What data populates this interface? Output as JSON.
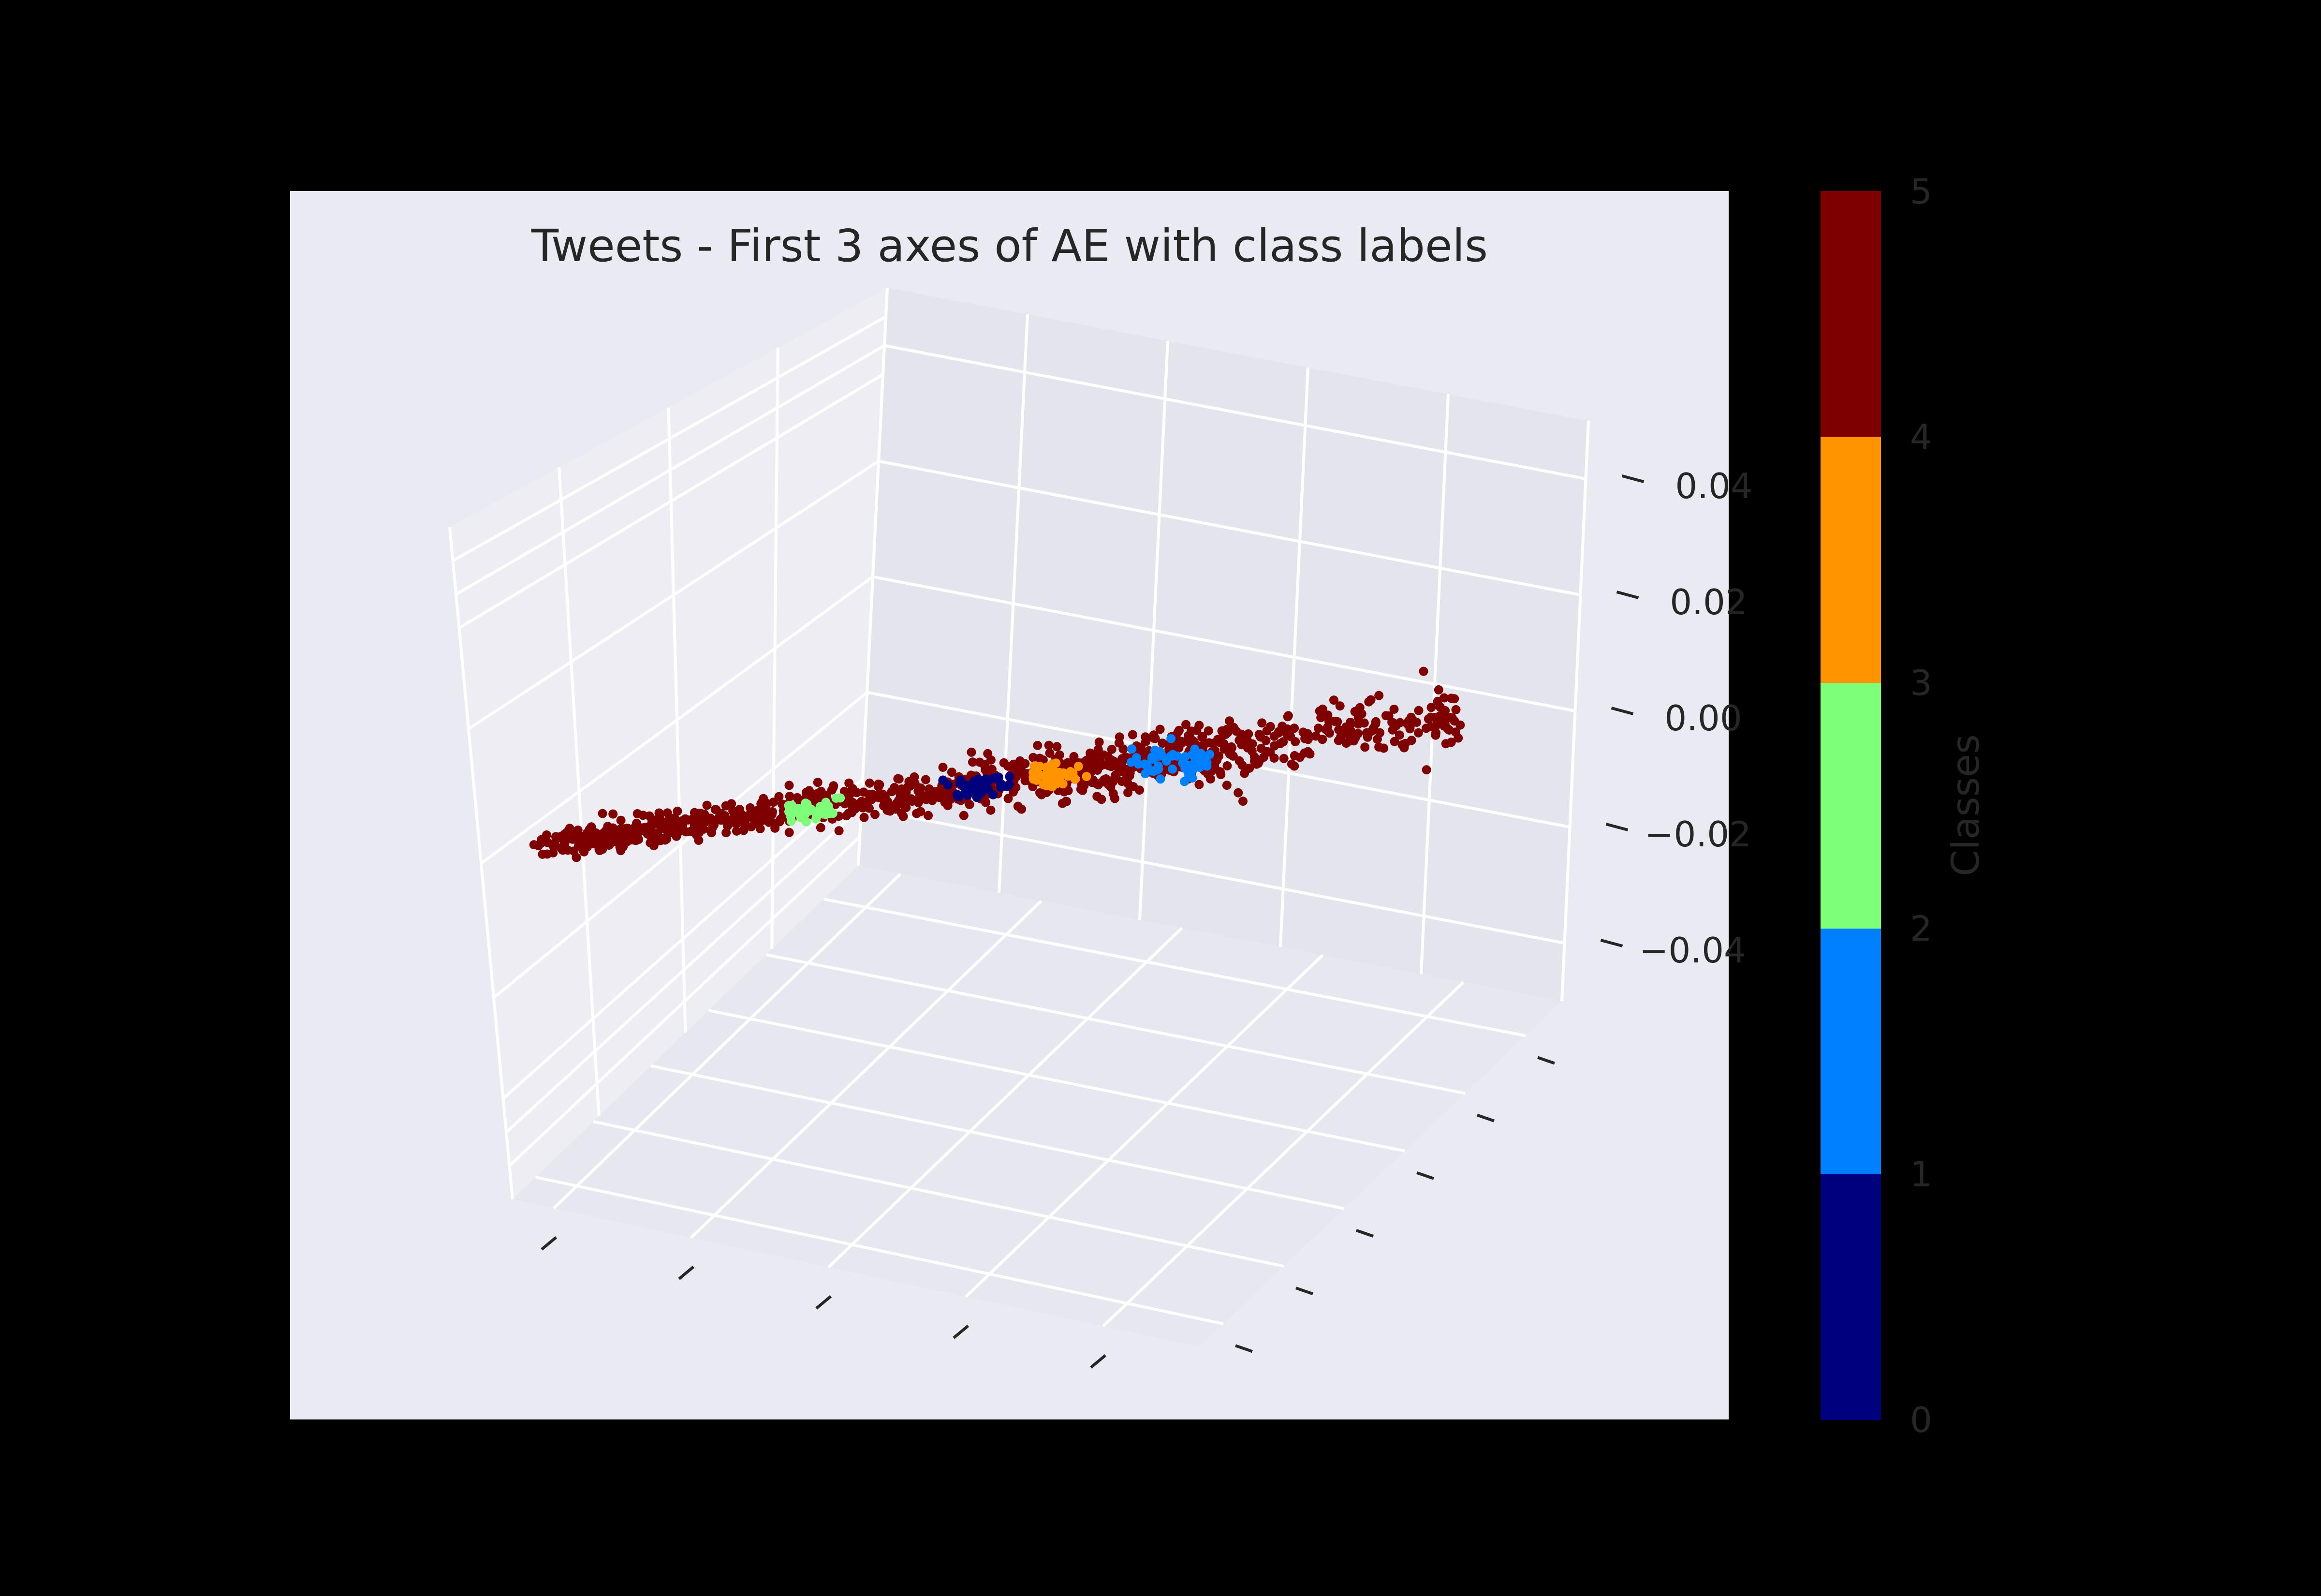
{
  "chart_data": {
    "type": "scatter",
    "projection": "3d",
    "title": "Tweets - First 3 axes of AE with class labels",
    "xlabel": "",
    "ylabel": "",
    "zlabel": "",
    "z_ticks": [
      0.04,
      0.02,
      0.0,
      -0.02,
      -0.04
    ],
    "z_tick_labels": [
      "0.04",
      "0.02",
      "0.00",
      "−0.02",
      "−0.04"
    ],
    "zlim": [
      -0.05,
      0.05
    ],
    "x_tick_count": 5,
    "y_tick_count": 6,
    "x_tick_labels_visible": false,
    "y_tick_labels_visible": false,
    "grid": true,
    "colormap": "jet (discrete, 5 levels)",
    "colorbar": {
      "label": "Classes",
      "range": [
        0,
        5
      ],
      "ticks": [
        0,
        1,
        2,
        3,
        4,
        5
      ],
      "tick_labels": [
        "0",
        "1",
        "2",
        "3",
        "4",
        "5"
      ],
      "colors": [
        "#00007f",
        "#0080ff",
        "#7dff7a",
        "#ff9400",
        "#7f0000"
      ],
      "placement": "right"
    },
    "series": [
      {
        "class": 0,
        "color": "#00007f",
        "point_count": 45,
        "position_along_cloud": [
          0.45,
          0.5
        ]
      },
      {
        "class": 1,
        "color": "#0080ff",
        "point_count": 55,
        "position_along_cloud": [
          0.65,
          0.72
        ]
      },
      {
        "class": 2,
        "color": "#7dff7a",
        "point_count": 35,
        "position_along_cloud": [
          0.28,
          0.32
        ]
      },
      {
        "class": 3,
        "color": "#ff9400",
        "point_count": 40,
        "position_along_cloud": [
          0.53,
          0.58
        ]
      },
      {
        "class": 4,
        "color": "#7f0000",
        "point_count": 1100,
        "position_along_cloud": [
          0.0,
          1.0
        ]
      }
    ],
    "z_value_range": [
      -0.025,
      0.005
    ]
  },
  "colors": {
    "figure_background": "#000000",
    "axes_background": "#eaeaf2",
    "pane_color": "#e3e3eb",
    "grid_color": "#ffffff",
    "text_color": "#262626"
  }
}
